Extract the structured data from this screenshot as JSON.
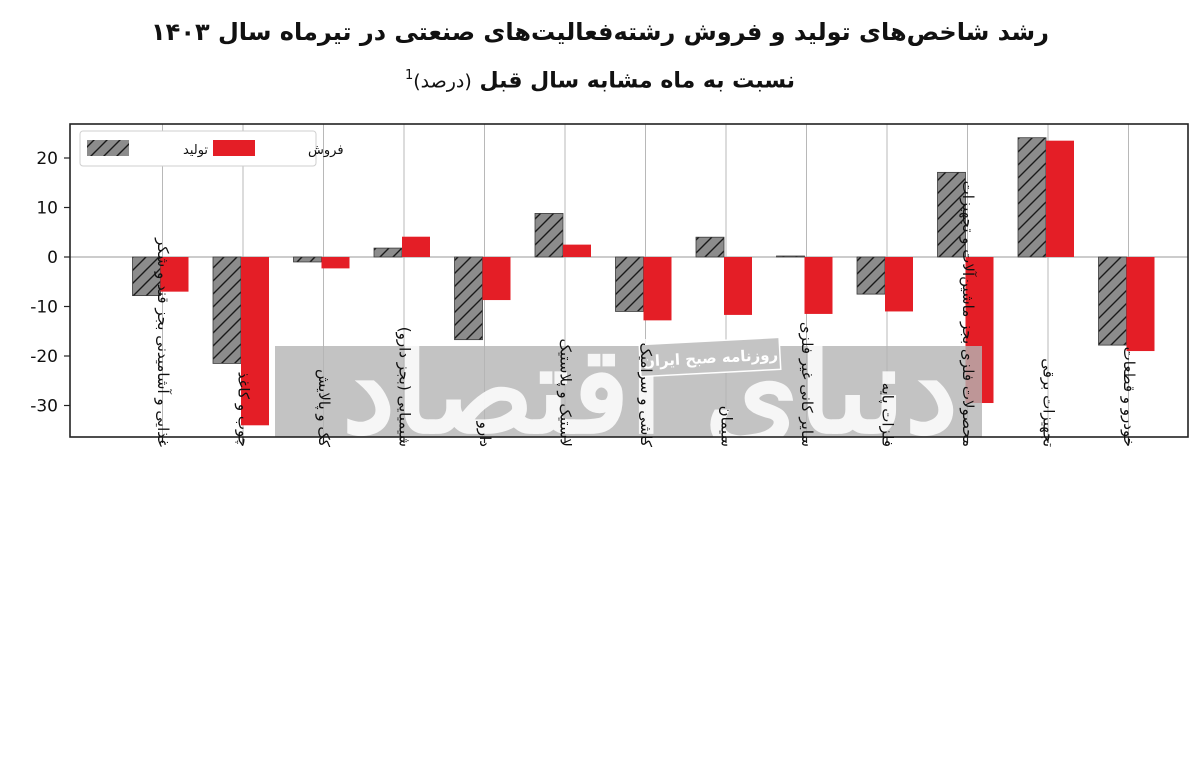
{
  "header": {
    "title_line1": "رشد شاخص‌های تولید و فروش رشته‌فعالیت‌های صنعتی در تیرماه سال ۱۴۰۳",
    "title_line2_main": "نسبت به ماه مشابه سال قبل",
    "title_line2_unit": "(درصد)",
    "title_footnote": "1"
  },
  "watermark": {
    "main_text": "دنیای اقتصاد",
    "small_text": "روزنامه صبح ایران"
  },
  "chart_data": {
    "type": "bar",
    "title": "رشد شاخص‌های تولید و فروش رشته‌فعالیت‌های صنعتی در تیرماه سال ۱۴۰۳ نسبت به ماه مشابه سال قبل (درصد)",
    "categories": [
      "غذایی و آشامیدنی بجز قند و شکر",
      "چوب و کاغذ",
      "کک و پالایش",
      "شیمیایی (بجز دارو)",
      "دارو",
      "لاستیک و پلاستیک",
      "کاشی و سرامیک",
      "سیمان",
      "سایر کانی غیر فلزی",
      "فلزات پایه",
      "محصولات فلزی بجز ماشین‌آلات و تجهیزات",
      "تجهیزات برقی",
      "خودرو و قطعات"
    ],
    "series": [
      {
        "name": "تولید",
        "color": "#8c8c8c",
        "pattern": "hatch",
        "values": [
          -7.8,
          -21.5,
          -1,
          1.8,
          -16.7,
          8.8,
          -11,
          4,
          0.2,
          -7.5,
          17.1,
          24.1,
          -17.8
        ]
      },
      {
        "name": "فروش",
        "color": "#e41e26",
        "values": [
          -7,
          -34,
          -2.3,
          4.1,
          -8.7,
          2.5,
          -12.8,
          -11.7,
          -11.5,
          -11,
          -29.5,
          23.5,
          -19
        ]
      }
    ],
    "yticks": [
      20,
      10,
      0,
      -10,
      -20,
      -30
    ],
    "ytick_labels": [
      "20",
      "10",
      "0",
      "-10",
      "-20",
      "-30"
    ],
    "ylim": [
      -37,
      27
    ],
    "xlabel": "",
    "ylabel": "",
    "grid": "vertical",
    "legend_position": "top-left"
  }
}
